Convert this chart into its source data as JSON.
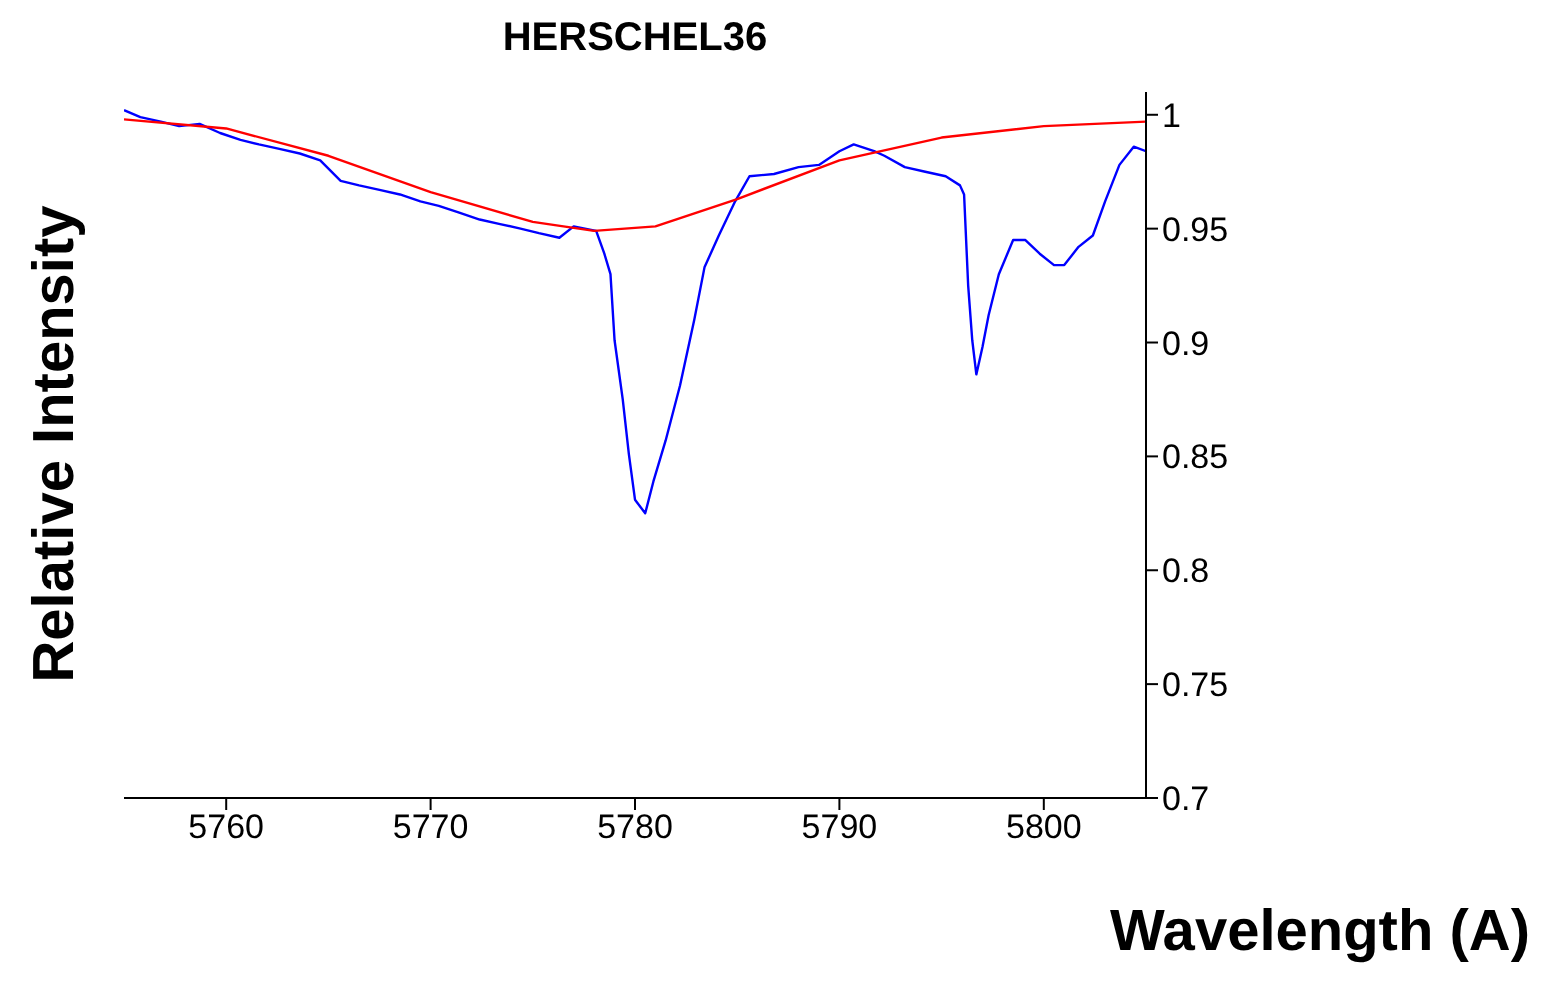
{
  "chart_data": {
    "type": "line",
    "title": "HERSCHEL36",
    "xlabel": "Wavelength (A)",
    "ylabel": "Relative Intensity",
    "xlim": [
      5755,
      5805
    ],
    "xticks": [
      5760,
      5770,
      5780,
      5790,
      5800
    ],
    "ylim": [
      0.7,
      1.01
    ],
    "yticks": [
      0.7,
      0.75,
      0.8,
      0.85,
      0.9,
      0.95,
      1
    ],
    "grid": false,
    "legend": false,
    "marker": "none",
    "line_style": "solid",
    "series": [
      {
        "color": "#0000ff",
        "x": [
          5755.0,
          5755.8,
          5756.8,
          5757.7,
          5758.7,
          5759.7,
          5760.7,
          5761.6,
          5762.6,
          5763.6,
          5764.6,
          5765.6,
          5766.5,
          5767.5,
          5768.5,
          5769.5,
          5770.4,
          5771.4,
          5772.4,
          5773.4,
          5774.4,
          5775.3,
          5776.3,
          5777.0,
          5778.1,
          5778.5,
          5778.8,
          5779.0,
          5779.4,
          5779.7,
          5780.0,
          5780.5,
          5780.9,
          5781.5,
          5782.2,
          5782.9,
          5783.4,
          5784.1,
          5784.9,
          5785.6,
          5786.8,
          5788.0,
          5789.0,
          5790.0,
          5790.7,
          5791.7,
          5792.2,
          5793.2,
          5794.2,
          5795.2,
          5795.9,
          5796.1,
          5796.3,
          5796.5,
          5796.7,
          5797.0,
          5797.3,
          5797.8,
          5798.5,
          5799.1,
          5799.8,
          5800.5,
          5801.0,
          5801.7,
          5802.4,
          5803.0,
          5803.7,
          5804.4,
          5805.0
        ],
        "values": [
          1.002,
          0.999,
          0.997,
          0.995,
          0.996,
          0.992,
          0.989,
          0.987,
          0.985,
          0.983,
          0.98,
          0.971,
          0.969,
          0.967,
          0.965,
          0.962,
          0.96,
          0.957,
          0.954,
          0.952,
          0.95,
          0.948,
          0.946,
          0.951,
          0.949,
          0.939,
          0.93,
          0.901,
          0.875,
          0.851,
          0.831,
          0.825,
          0.839,
          0.857,
          0.881,
          0.91,
          0.933,
          0.947,
          0.962,
          0.973,
          0.974,
          0.977,
          0.978,
          0.984,
          0.987,
          0.984,
          0.982,
          0.977,
          0.975,
          0.973,
          0.969,
          0.965,
          0.925,
          0.901,
          0.886,
          0.898,
          0.912,
          0.93,
          0.945,
          0.945,
          0.939,
          0.934,
          0.934,
          0.942,
          0.947,
          0.962,
          0.978,
          0.986,
          0.984
        ]
      },
      {
        "color": "#ff0000",
        "x": [
          5755,
          5760,
          5765,
          5770,
          5775,
          5778,
          5781,
          5785,
          5790,
          5795,
          5800,
          5805
        ],
        "values": [
          0.998,
          0.994,
          0.982,
          0.966,
          0.953,
          0.949,
          0.951,
          0.963,
          0.98,
          0.99,
          0.995,
          0.997
        ]
      }
    ]
  }
}
